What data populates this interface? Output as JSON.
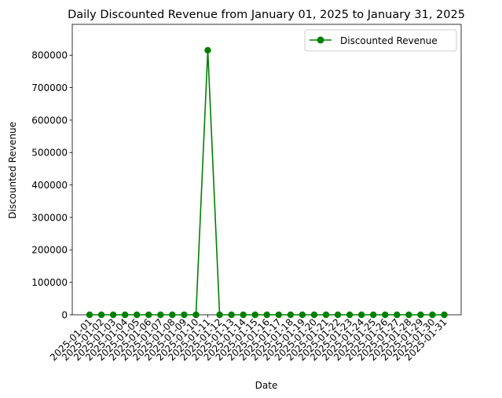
{
  "chart_data": {
    "type": "line",
    "title": "Daily Discounted Revenue from January 01, 2025 to January 31, 2025",
    "xlabel": "Date",
    "ylabel": "Discounted Revenue",
    "ylim": [
      0,
      895000
    ],
    "yticks": [
      0,
      100000,
      200000,
      300000,
      400000,
      500000,
      600000,
      700000,
      800000
    ],
    "grid": false,
    "legend_position": "top-right",
    "colors": {
      "series": "#008000",
      "axis": "#000000",
      "background": "#ffffff"
    },
    "x": [
      "2025-01-01",
      "2025-01-02",
      "2025-01-03",
      "2025-01-04",
      "2025-01-05",
      "2025-01-06",
      "2025-01-07",
      "2025-01-08",
      "2025-01-09",
      "2025-01-10",
      "2025-01-11",
      "2025-01-12",
      "2025-01-13",
      "2025-01-14",
      "2025-01-15",
      "2025-01-16",
      "2025-01-17",
      "2025-01-18",
      "2025-01-19",
      "2025-01-20",
      "2025-01-21",
      "2025-01-22",
      "2025-01-23",
      "2025-01-24",
      "2025-01-25",
      "2025-01-26",
      "2025-01-27",
      "2025-01-28",
      "2025-01-29",
      "2025-01-30",
      "2025-01-31"
    ],
    "series": [
      {
        "name": "Discounted Revenue",
        "marker": "circle",
        "values": [
          0,
          0,
          0,
          0,
          0,
          0,
          0,
          0,
          0,
          0,
          815000,
          0,
          0,
          0,
          0,
          0,
          0,
          0,
          0,
          0,
          0,
          0,
          0,
          0,
          0,
          0,
          0,
          0,
          0,
          0,
          0
        ]
      }
    ]
  }
}
